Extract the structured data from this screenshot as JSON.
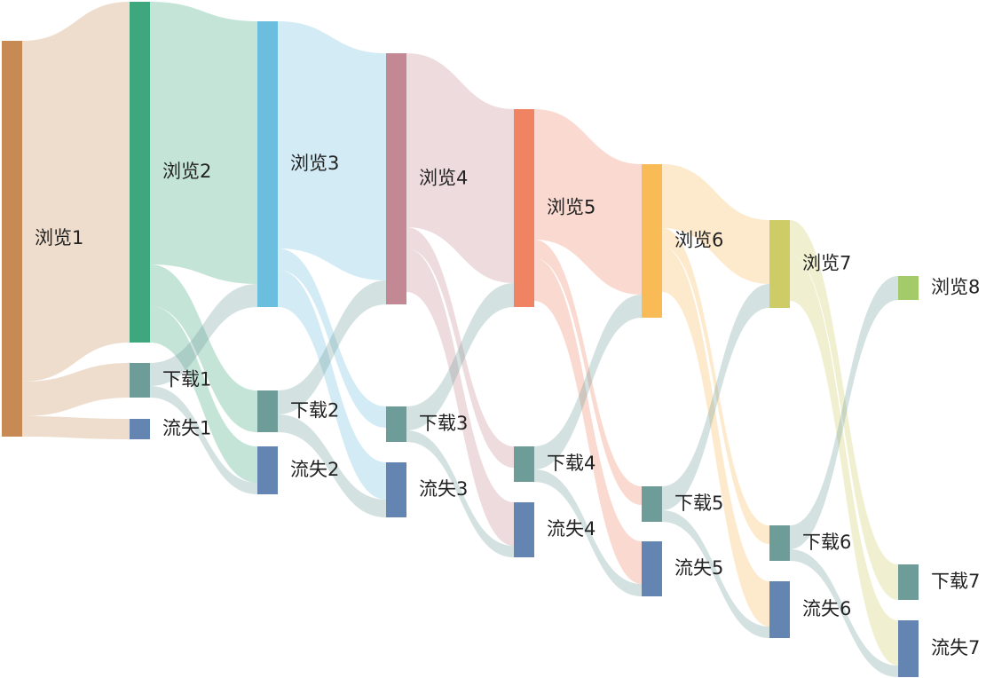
{
  "diagram": {
    "type": "sankey",
    "nodes": [
      {
        "id": "b1",
        "label": "浏览1",
        "color": "#C78A55"
      },
      {
        "id": "b2",
        "label": "浏览2",
        "color": "#3FA77D"
      },
      {
        "id": "d1",
        "label": "下载1",
        "color": "#6E9C98"
      },
      {
        "id": "l1",
        "label": "流失1",
        "color": "#6485B2"
      },
      {
        "id": "b3",
        "label": "浏览3",
        "color": "#6CBEDE"
      },
      {
        "id": "d2",
        "label": "下载2",
        "color": "#6E9C98"
      },
      {
        "id": "l2",
        "label": "流失2",
        "color": "#6485B2"
      },
      {
        "id": "b4",
        "label": "浏览4",
        "color": "#C28893"
      },
      {
        "id": "d3",
        "label": "下载3",
        "color": "#6E9C98"
      },
      {
        "id": "l3",
        "label": "流失3",
        "color": "#6485B2"
      },
      {
        "id": "b5",
        "label": "浏览5",
        "color": "#F08462"
      },
      {
        "id": "d4",
        "label": "下载4",
        "color": "#6E9C98"
      },
      {
        "id": "l4",
        "label": "流失4",
        "color": "#6485B2"
      },
      {
        "id": "b6",
        "label": "浏览6",
        "color": "#F9BB55"
      },
      {
        "id": "d5",
        "label": "下载5",
        "color": "#6E9C98"
      },
      {
        "id": "l5",
        "label": "流失5",
        "color": "#6485B2"
      },
      {
        "id": "b7",
        "label": "浏览7",
        "color": "#CECC67"
      },
      {
        "id": "d6",
        "label": "下载6",
        "color": "#6E9C98"
      },
      {
        "id": "l6",
        "label": "流失6",
        "color": "#6485B2"
      },
      {
        "id": "b8",
        "label": "浏览8",
        "color": "#A4CB6A"
      },
      {
        "id": "d7",
        "label": "下载7",
        "color": "#6E9C98"
      },
      {
        "id": "l7",
        "label": "流失7",
        "color": "#6485B2"
      }
    ],
    "links": [
      {
        "source": "b1",
        "target": "b2",
        "value": 384
      },
      {
        "source": "b1",
        "target": "d1",
        "value": 39
      },
      {
        "source": "b1",
        "target": "l1",
        "value": 23
      },
      {
        "source": "b2",
        "target": "b3",
        "value": 296
      },
      {
        "source": "b2",
        "target": "d2",
        "value": 47
      },
      {
        "source": "b2",
        "target": "l2",
        "value": 41
      },
      {
        "source": "d1",
        "target": "b3",
        "value": 26
      },
      {
        "source": "d1",
        "target": "l2",
        "value": 13
      },
      {
        "source": "b3",
        "target": "b4",
        "value": 256
      },
      {
        "source": "b3",
        "target": "d3",
        "value": 24
      },
      {
        "source": "b3",
        "target": "l3",
        "value": 42
      },
      {
        "source": "d2",
        "target": "b4",
        "value": 27
      },
      {
        "source": "d2",
        "target": "l3",
        "value": 20
      },
      {
        "source": "b4",
        "target": "b5",
        "value": 196
      },
      {
        "source": "b4",
        "target": "d4",
        "value": 24
      },
      {
        "source": "b4",
        "target": "l4",
        "value": 49
      },
      {
        "source": "d3",
        "target": "b5",
        "value": 27
      },
      {
        "source": "d3",
        "target": "l4",
        "value": 13
      },
      {
        "source": "b5",
        "target": "b6",
        "value": 147
      },
      {
        "source": "b5",
        "target": "d5",
        "value": 21
      },
      {
        "source": "b5",
        "target": "l5",
        "value": 48
      },
      {
        "source": "d4",
        "target": "b6",
        "value": 26
      },
      {
        "source": "d4",
        "target": "l5",
        "value": 14
      },
      {
        "source": "b6",
        "target": "b7",
        "value": 72
      },
      {
        "source": "b6",
        "target": "d6",
        "value": 21
      },
      {
        "source": "b6",
        "target": "l6",
        "value": 51
      },
      {
        "source": "d5",
        "target": "b7",
        "value": 27
      },
      {
        "source": "d5",
        "target": "l6",
        "value": 13
      },
      {
        "source": "b7",
        "target": "d7",
        "value": 40
      },
      {
        "source": "b7",
        "target": "l7",
        "value": 51
      },
      {
        "source": "d6",
        "target": "b8",
        "value": 27
      },
      {
        "source": "d6",
        "target": "l7",
        "value": 13
      }
    ]
  }
}
